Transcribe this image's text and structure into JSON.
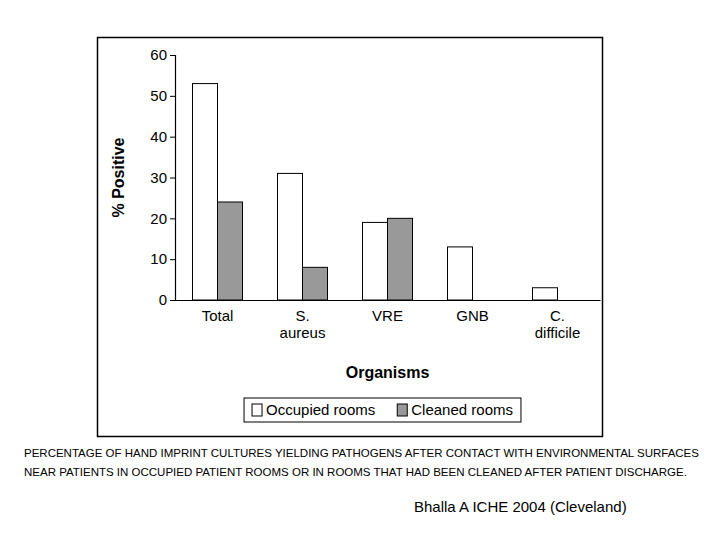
{
  "chart_data": {
    "type": "bar",
    "x_label": "Organisms",
    "y_label": "% Positive",
    "categories": [
      "Total",
      "S. aureus",
      "VRE",
      "GNB",
      "C. difficile"
    ],
    "series": [
      {
        "name": "Occupied rooms",
        "color": "#ffffff",
        "values": [
          53,
          31,
          19,
          13,
          3
        ]
      },
      {
        "name": "Cleaned rooms",
        "color": "#999999",
        "values": [
          24,
          8,
          20,
          0,
          0
        ]
      }
    ],
    "ylim": [
      0,
      60
    ],
    "yticks": [
      0,
      10,
      20,
      30,
      40,
      50,
      60
    ],
    "legend": "bottom",
    "grid": false,
    "annotations": [
      "PERCENTAGE OF HAND IMPRINT CULTURES YIELDING PATHOGENS AFTER CONTACT WITH ENVIRONMENTAL SURFACES NEAR PATIENTS IN OCCUPIED PATIENT ROOMS OR IN ROOMS THAT HAD BEEN CLEANED AFTER PATIENT DISCHARGE.",
      "Bhalla A  ICHE 2004 (Cleveland)"
    ]
  }
}
